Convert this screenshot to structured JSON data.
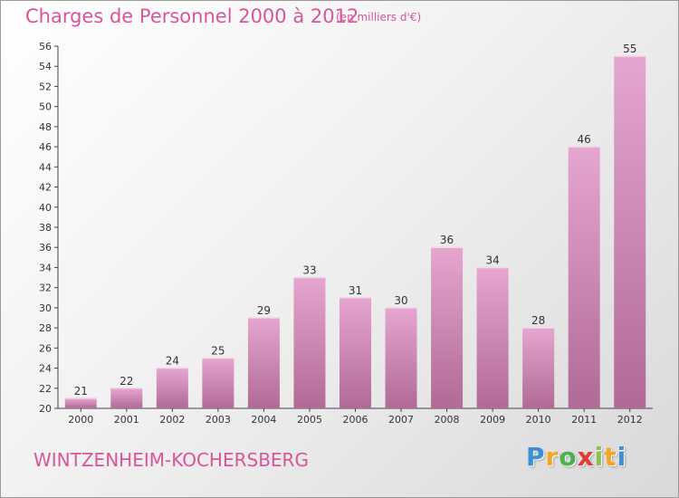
{
  "header": {
    "title": "Charges de Personnel 2000 à 2012",
    "unit": "(en milliers d'€)"
  },
  "footer": {
    "commune": "WINTZENHEIM-KOCHERSBERG",
    "logo_letters": [
      "P",
      "r",
      "o",
      "x",
      "i",
      "t",
      "i"
    ],
    "logo_colors": [
      "#3a8fd6",
      "#f5a623",
      "#4caf50",
      "#e53935",
      "#8bc34a",
      "#f5a623",
      "#3a8fd6"
    ]
  },
  "colors": {
    "accent": "#d9559a",
    "bar_top": "#e5a6cf",
    "bar_bottom": "#b06a95"
  },
  "chart_data": {
    "type": "bar",
    "categories": [
      "2000",
      "2001",
      "2002",
      "2003",
      "2004",
      "2005",
      "2006",
      "2007",
      "2008",
      "2009",
      "2010",
      "2011",
      "2012"
    ],
    "values": [
      21,
      22,
      24,
      25,
      29,
      33,
      31,
      30,
      36,
      34,
      28,
      46,
      55
    ],
    "ylim": [
      20,
      56
    ],
    "yticks": [
      20,
      22,
      24,
      26,
      28,
      30,
      32,
      34,
      36,
      38,
      40,
      42,
      44,
      46,
      48,
      50,
      52,
      54,
      56
    ],
    "grid": false,
    "data_labels": true
  }
}
